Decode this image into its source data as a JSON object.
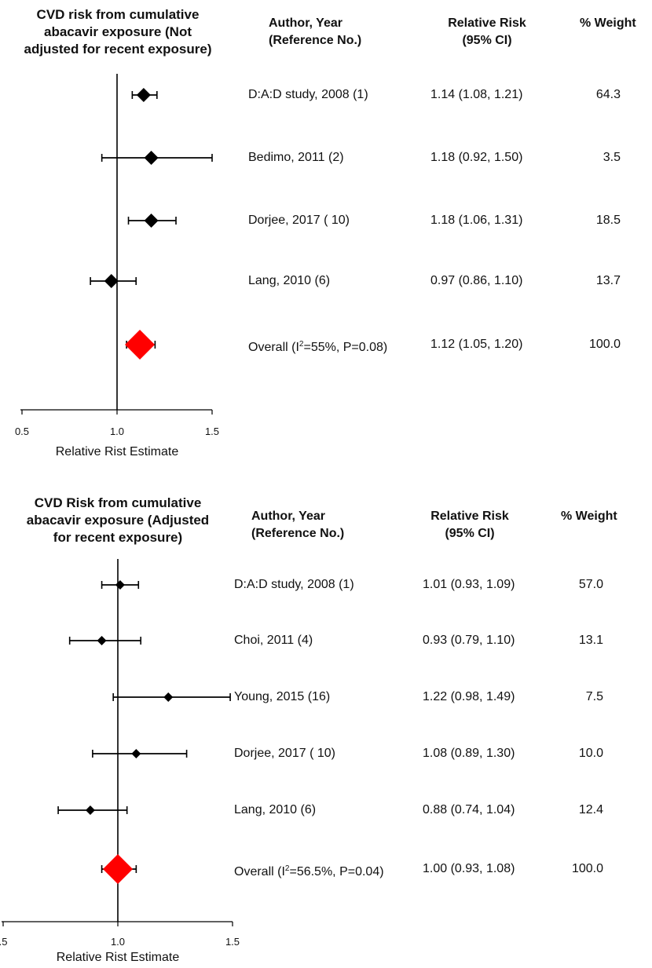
{
  "chart_data": [
    {
      "type": "forest",
      "title_lines": [
        "CVD risk from cumulative",
        "abacavir exposure (Not",
        "adjusted for recent exposure)"
      ],
      "headers": {
        "study": [
          "Author, Year",
          "(Reference No.)"
        ],
        "estimate": [
          "Relative Risk",
          "(95% CI)"
        ],
        "weight": [
          "% Weight"
        ]
      },
      "xlabel": "Relative Rist Estimate",
      "xlim": [
        0.5,
        1.5
      ],
      "ticks": [
        0.5,
        1.0,
        1.5
      ],
      "tick_labels": [
        "0.5",
        "1.0",
        "1.5"
      ],
      "reference_line": 1.0,
      "rows": [
        {
          "study": "D:A:D study, 2008 (1)",
          "rr": 1.14,
          "lo": 1.08,
          "hi": 1.21,
          "ci_text": "1.14 (1.08, 1.21)",
          "weight": "64.3",
          "overall": false
        },
        {
          "study": "Bedimo, 2011 (2)",
          "rr": 1.18,
          "lo": 0.92,
          "hi": 1.5,
          "ci_text": "1.18 (0.92, 1.50)",
          "weight": "3.5",
          "overall": false
        },
        {
          "study": "Dorjee, 2017 ( 10)",
          "rr": 1.18,
          "lo": 1.06,
          "hi": 1.31,
          "ci_text": "1.18 (1.06, 1.31)",
          "weight": "18.5",
          "overall": false
        },
        {
          "study": "Lang, 2010 (6)",
          "rr": 0.97,
          "lo": 0.86,
          "hi": 1.1,
          "ci_text": "0.97 (0.86, 1.10)",
          "weight": "13.7",
          "overall": false
        },
        {
          "study_prefix": "Overall (I",
          "study_sup": "2",
          "study_suffix": "=55%, P=0.08)",
          "rr": 1.12,
          "lo": 1.05,
          "hi": 1.2,
          "ci_text": "1.12 (1.05, 1.20)",
          "weight": "100.0",
          "overall": true
        }
      ],
      "marker_color": "#000000",
      "overall_color": "#ff0000"
    },
    {
      "type": "forest",
      "title_lines": [
        "CVD Risk from cumulative",
        "abacavir exposure (Adjusted",
        "for recent exposure)"
      ],
      "headers": {
        "study": [
          "Author, Year",
          "(Reference No.)"
        ],
        "estimate": [
          "Relative Risk",
          "(95% CI)"
        ],
        "weight": [
          "% Weight"
        ]
      },
      "xlabel": "Relative Rist Estimate",
      "xlim": [
        0.5,
        1.5
      ],
      "ticks": [
        0.5,
        1.0,
        1.5
      ],
      "tick_labels": [
        ".5",
        "1.0",
        "1.5"
      ],
      "reference_line": 1.0,
      "rows": [
        {
          "study": "D:A:D study, 2008 (1)",
          "rr": 1.01,
          "lo": 0.93,
          "hi": 1.09,
          "ci_text": "1.01 (0.93, 1.09)",
          "weight": "57.0",
          "overall": false
        },
        {
          "study": "Choi, 2011 (4)",
          "rr": 0.93,
          "lo": 0.79,
          "hi": 1.1,
          "ci_text": "0.93 (0.79, 1.10)",
          "weight": "13.1",
          "overall": false
        },
        {
          "study": "Young, 2015 (16)",
          "rr": 1.22,
          "lo": 0.98,
          "hi": 1.49,
          "ci_text": "1.22 (0.98, 1.49)",
          "weight": "7.5",
          "overall": false
        },
        {
          "study": "Dorjee, 2017 ( 10)",
          "rr": 1.08,
          "lo": 0.89,
          "hi": 1.3,
          "ci_text": "1.08 (0.89, 1.30)",
          "weight": "10.0",
          "overall": false
        },
        {
          "study": "Lang, 2010 (6)",
          "rr": 0.88,
          "lo": 0.74,
          "hi": 1.04,
          "ci_text": "0.88 (0.74, 1.04)",
          "weight": "12.4",
          "overall": false
        },
        {
          "study_prefix": "Overall (I",
          "study_sup": "2",
          "study_suffix": "=56.5%, P=0.04)",
          "rr": 1.0,
          "lo": 0.93,
          "hi": 1.08,
          "ci_text": "1.00 (0.93, 1.08)",
          "weight": "100.0",
          "overall": true
        }
      ],
      "marker_color": "#000000",
      "overall_color": "#ff0000"
    }
  ]
}
